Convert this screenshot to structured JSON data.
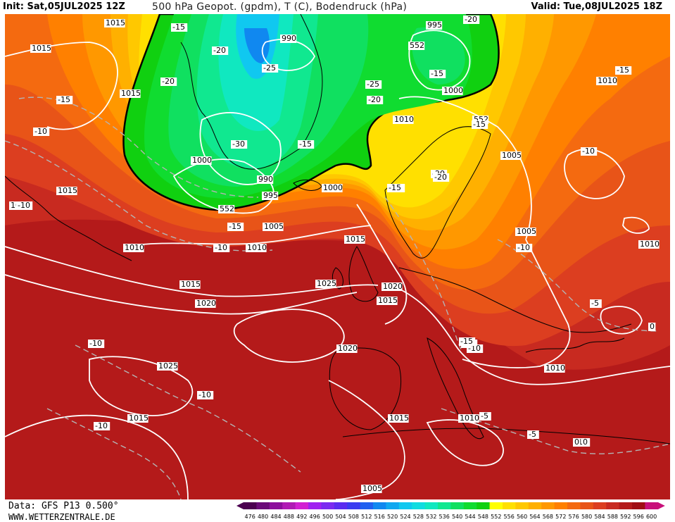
{
  "header": {
    "init": "Init: Sat,05JUL2025 12Z",
    "title": "500 hPa Geopot. (gpdm), T (C), Bodendruck (hPa)",
    "valid": "Valid: Tue,08JUL2025 18Z"
  },
  "footer": {
    "data_source": "Data: GFS P13 0.500°",
    "website": "WWW.WETTERZENTRALE.DE"
  },
  "colorbar": {
    "values": [
      "476",
      "480",
      "484",
      "488",
      "492",
      "496",
      "500",
      "504",
      "508",
      "512",
      "516",
      "520",
      "524",
      "528",
      "532",
      "536",
      "540",
      "544",
      "548",
      "552",
      "556",
      "560",
      "564",
      "568",
      "572",
      "576",
      "580",
      "584",
      "588",
      "592",
      "596",
      "600"
    ],
    "colors": [
      "#4b0050",
      "#6a0a78",
      "#8c0f9c",
      "#b01ab4",
      "#d21fd2",
      "#a020f0",
      "#7a2af0",
      "#5a2cf0",
      "#3a3cf0",
      "#2060f0",
      "#1088f0",
      "#10a8f0",
      "#10c8f0",
      "#10dce0",
      "#10e8c0",
      "#10e890",
      "#10e060",
      "#10dc30",
      "#10d010",
      "#ffff00",
      "#ffe000",
      "#ffc800",
      "#ffb000",
      "#ff9800",
      "#ff8000",
      "#f46a10",
      "#e85418",
      "#dc3e20",
      "#c82a20",
      "#b41a1a",
      "#a00e14",
      "#c8107a"
    ]
  },
  "map": {
    "pressure_labels": [
      "1015",
      "1015",
      "990",
      "995",
      "552",
      "1000",
      "1010",
      "1015",
      "1000",
      "1015",
      "990",
      "995",
      "1000",
      "1005",
      "552",
      "1010",
      "1010",
      "1015",
      "1010",
      "552",
      "1005",
      "1005",
      "1015",
      "1020",
      "1025",
      "1020",
      "1015",
      "1020",
      "1025",
      "1015",
      "1010",
      "1015",
      "1005",
      "1010",
      "1010",
      "1010"
    ],
    "temp_labels": [
      "-15",
      "-20",
      "-25",
      "-20",
      "-20",
      "-15",
      "-25",
      "-20",
      "-15",
      "-15",
      "-15",
      "-10",
      "-30",
      "-15",
      "-20",
      "-15",
      "-10",
      "-15",
      "-10",
      "-15",
      "-10",
      "-10",
      "-10",
      "-5",
      "0",
      "-15",
      "-10",
      "-10",
      "-5",
      "-5",
      "-10",
      "-10",
      "0",
      "-15",
      "-20"
    ],
    "colors": {
      "land_outline": "#000000",
      "isobar": "#ffffff",
      "isotherm": "#b4b4b4",
      "thick_contour": "#000000"
    }
  }
}
